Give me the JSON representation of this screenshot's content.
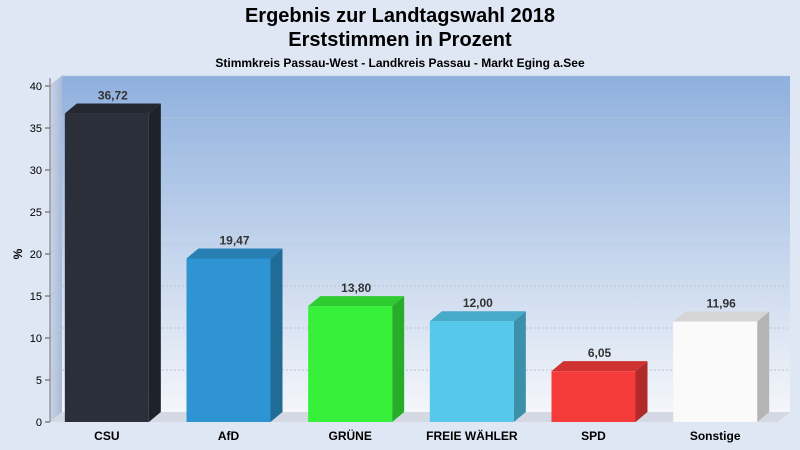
{
  "chart_data": {
    "type": "bar",
    "title": "Ergebnis zur Landtagswahl 2018",
    "title2": "Erststimmen in Prozent",
    "subtitle": "Stimmkreis Passau-West - Landkreis Passau - Markt Eging a.See",
    "ylabel": "%",
    "ylim": [
      0,
      40
    ],
    "yticks": [
      0,
      5,
      10,
      15,
      20,
      25,
      30,
      35,
      40
    ],
    "grid": true,
    "categories": [
      "CSU",
      "AfD",
      "GRÜNE",
      "FREIE WÄHLER",
      "SPD",
      "Sonstige"
    ],
    "values": [
      36.72,
      19.47,
      13.8,
      12.0,
      6.05,
      11.96
    ],
    "value_labels": [
      "36,72",
      "19,47",
      "13,80",
      "12,00",
      "6,05",
      "11,96"
    ],
    "colors": [
      "#2a2f3a",
      "#2e95d2",
      "#36f03a",
      "#55c8ec",
      "#f53a3a",
      "#fafafa"
    ]
  }
}
